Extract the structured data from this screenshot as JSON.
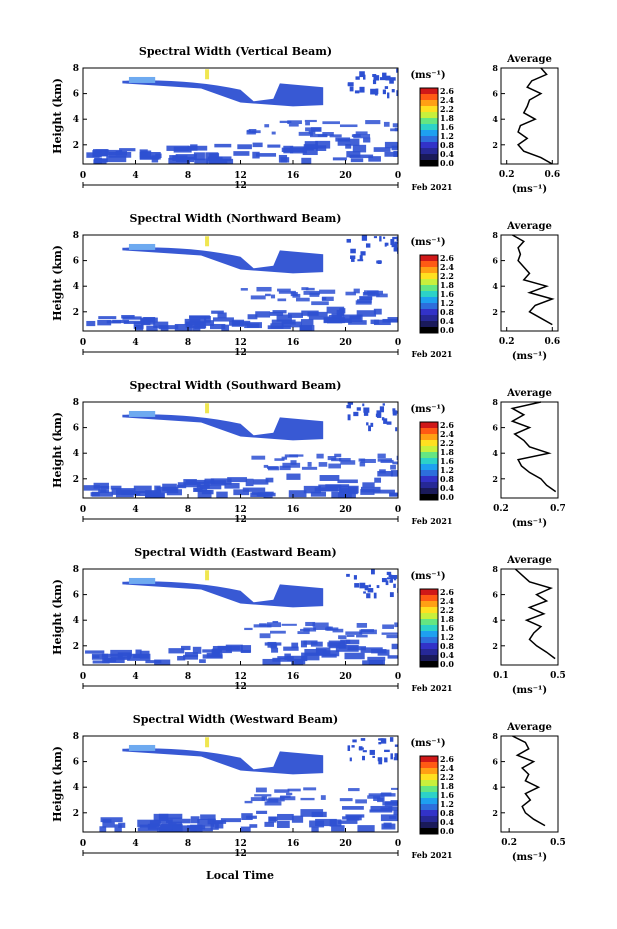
{
  "figure": {
    "x_axis_title": "Local Time",
    "x_day_label": "12",
    "date_label": "Feb 2021",
    "colorbar_unit": "(ms⁻¹)",
    "colorbar_ticks": [
      "2.6",
      "2.4",
      "2.2",
      "1.8",
      "1.6",
      "1.2",
      "0.8",
      "0.4",
      "0.0"
    ],
    "colorbar_colors": [
      "#d01818",
      "#ff5a14",
      "#ffa014",
      "#ffe020",
      "#c8f03c",
      "#64e682",
      "#2cd2c8",
      "#1ea0f0",
      "#2d6edc",
      "#3232c8",
      "#262896",
      "#1a1a5a",
      "#000000"
    ],
    "field_color_low": "#2d50d2",
    "field_color_mid": "#6eaaf0",
    "field_color_high": "#f0e650"
  },
  "chart_data": [
    {
      "type": "heatmap",
      "title": "Spectral Width (Vertical Beam)",
      "ylabel": "Height (km)",
      "xlabel": "Local Time",
      "x_ticks": [
        "0",
        "4",
        "8",
        "12",
        "16",
        "20",
        "0"
      ],
      "y_ticks": [
        "8",
        "6",
        "4",
        "2"
      ],
      "xlim": [
        0,
        24
      ],
      "ylim": [
        0.5,
        8
      ],
      "profile": {
        "title": "Average",
        "xlabel": "(ms⁻¹)",
        "x_ticks": [
          "0.2",
          "0.6"
        ],
        "xlim": [
          0.15,
          0.65
        ],
        "heights": [
          0.5,
          1,
          1.5,
          2,
          2.5,
          3,
          3.5,
          4,
          4.5,
          5,
          5.5,
          6,
          6.5,
          7,
          7.5,
          8
        ],
        "values": [
          0.6,
          0.5,
          0.35,
          0.3,
          0.38,
          0.3,
          0.32,
          0.45,
          0.35,
          0.38,
          0.4,
          0.5,
          0.38,
          0.42,
          0.55,
          0.5
        ]
      }
    },
    {
      "type": "heatmap",
      "title": "Spectral Width (Northward Beam)",
      "ylabel": "Height (km)",
      "xlabel": "Local Time",
      "x_ticks": [
        "0",
        "4",
        "8",
        "12",
        "16",
        "20",
        "0"
      ],
      "y_ticks": [
        "8",
        "6",
        "4",
        "2"
      ],
      "xlim": [
        0,
        24
      ],
      "ylim": [
        0.5,
        8
      ],
      "profile": {
        "title": "Average",
        "xlabel": "(ms⁻¹)",
        "x_ticks": [
          "0.2",
          "0.6"
        ],
        "xlim": [
          0.15,
          0.65
        ],
        "heights": [
          1,
          1.5,
          2,
          2.5,
          3,
          3.5,
          4,
          4.5,
          5,
          5.5,
          6,
          6.5,
          7,
          7.5,
          8
        ],
        "values": [
          0.6,
          0.5,
          0.4,
          0.45,
          0.6,
          0.4,
          0.55,
          0.35,
          0.4,
          0.35,
          0.3,
          0.32,
          0.3,
          0.35,
          0.25
        ]
      }
    },
    {
      "type": "heatmap",
      "title": "Spectral Width (Southward Beam)",
      "ylabel": "Height (km)",
      "xlabel": "Local Time",
      "x_ticks": [
        "0",
        "4",
        "8",
        "12",
        "16",
        "20",
        "0"
      ],
      "y_ticks": [
        "8",
        "6",
        "4",
        "2"
      ],
      "xlim": [
        0,
        24
      ],
      "ylim": [
        0.5,
        8
      ],
      "profile": {
        "title": "Average",
        "xlabel": "(ms⁻¹)",
        "x_ticks": [
          "0.2",
          "0.7"
        ],
        "xlim": [
          0.2,
          0.7
        ],
        "heights": [
          1,
          1.5,
          2,
          2.5,
          3,
          3.5,
          4,
          4.5,
          5,
          5.5,
          6,
          6.5,
          7,
          7.5,
          8
        ],
        "values": [
          0.68,
          0.6,
          0.55,
          0.45,
          0.38,
          0.35,
          0.62,
          0.45,
          0.4,
          0.32,
          0.45,
          0.3,
          0.4,
          0.3,
          0.55
        ]
      }
    },
    {
      "type": "heatmap",
      "title": "Spectral Width (Eastward Beam)",
      "ylabel": "Height (km)",
      "xlabel": "Local Time",
      "x_ticks": [
        "0",
        "4",
        "8",
        "12",
        "16",
        "20",
        "0"
      ],
      "y_ticks": [
        "8",
        "6",
        "4",
        "2"
      ],
      "xlim": [
        0,
        24
      ],
      "ylim": [
        0.5,
        8
      ],
      "profile": {
        "title": "Average",
        "xlabel": "(ms⁻¹)",
        "x_ticks": [
          "0.1",
          "0.5"
        ],
        "xlim": [
          0.1,
          0.5
        ],
        "heights": [
          1,
          1.5,
          2,
          2.5,
          3,
          3.5,
          4,
          4.5,
          5,
          5.5,
          6,
          6.5,
          7,
          7.5,
          8
        ],
        "values": [
          0.48,
          0.42,
          0.35,
          0.3,
          0.33,
          0.38,
          0.28,
          0.4,
          0.3,
          0.42,
          0.35,
          0.45,
          0.3,
          0.25,
          0.2
        ]
      }
    },
    {
      "type": "heatmap",
      "title": "Spectral Width (Westward Beam)",
      "ylabel": "Height (km)",
      "xlabel": "Local Time",
      "x_ticks": [
        "0",
        "4",
        "8",
        "12",
        "16",
        "20",
        "0"
      ],
      "y_ticks": [
        "8",
        "6",
        "4",
        "2"
      ],
      "xlim": [
        0,
        24
      ],
      "ylim": [
        0.5,
        8
      ],
      "profile": {
        "title": "Average",
        "xlabel": "(ms⁻¹)",
        "x_ticks": [
          "0.2",
          "0.5"
        ],
        "xlim": [
          0.15,
          0.5
        ],
        "heights": [
          1,
          1.5,
          2,
          2.5,
          3,
          3.5,
          4,
          4.5,
          5,
          5.5,
          6,
          6.5,
          7,
          7.5,
          8
        ],
        "values": [
          0.42,
          0.35,
          0.3,
          0.28,
          0.33,
          0.3,
          0.38,
          0.3,
          0.32,
          0.28,
          0.35,
          0.25,
          0.32,
          0.3,
          0.22
        ]
      }
    }
  ]
}
